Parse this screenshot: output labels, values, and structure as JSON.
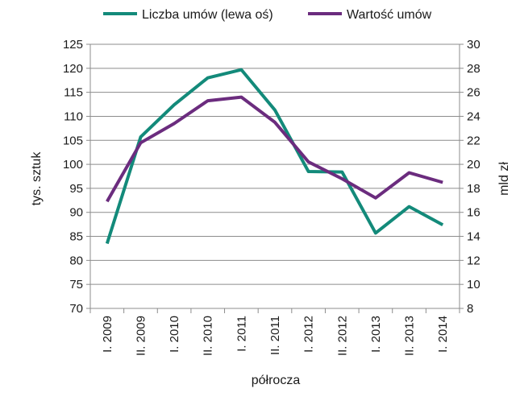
{
  "chart_data": {
    "type": "line",
    "categories": [
      "I. 2009",
      "II. 2009",
      "I. 2010",
      "II. 2010",
      "I. 2011",
      "II. 2011",
      "I. 2012",
      "II. 2012",
      "I. 2013",
      "II. 2013",
      "I. 2014"
    ],
    "xlabel": "półrocza",
    "ylabel_left": "tys. sztuk",
    "ylabel_right": "mld zł",
    "ylim_left": [
      70,
      125
    ],
    "ylim_right": [
      8,
      30
    ],
    "yticks_left": [
      70,
      75,
      80,
      85,
      90,
      95,
      100,
      105,
      110,
      115,
      120,
      125
    ],
    "yticks_right": [
      8,
      10,
      12,
      14,
      16,
      18,
      20,
      22,
      24,
      26,
      28,
      30
    ],
    "grid": "horizontal",
    "legend": "top",
    "series": [
      {
        "name": "Liczba umów (lewa oś)",
        "axis": "left",
        "color": "#138a7a",
        "values": [
          83.5,
          105.7,
          112.4,
          118.0,
          119.7,
          111.3,
          98.5,
          98.4,
          85.7,
          91.2,
          87.4
        ]
      },
      {
        "name": "Wartość umów",
        "axis": "right",
        "color": "#6b2c7e",
        "values": [
          16.9,
          21.8,
          23.4,
          25.3,
          25.6,
          23.5,
          20.2,
          18.8,
          17.2,
          19.3,
          18.5
        ]
      }
    ]
  }
}
